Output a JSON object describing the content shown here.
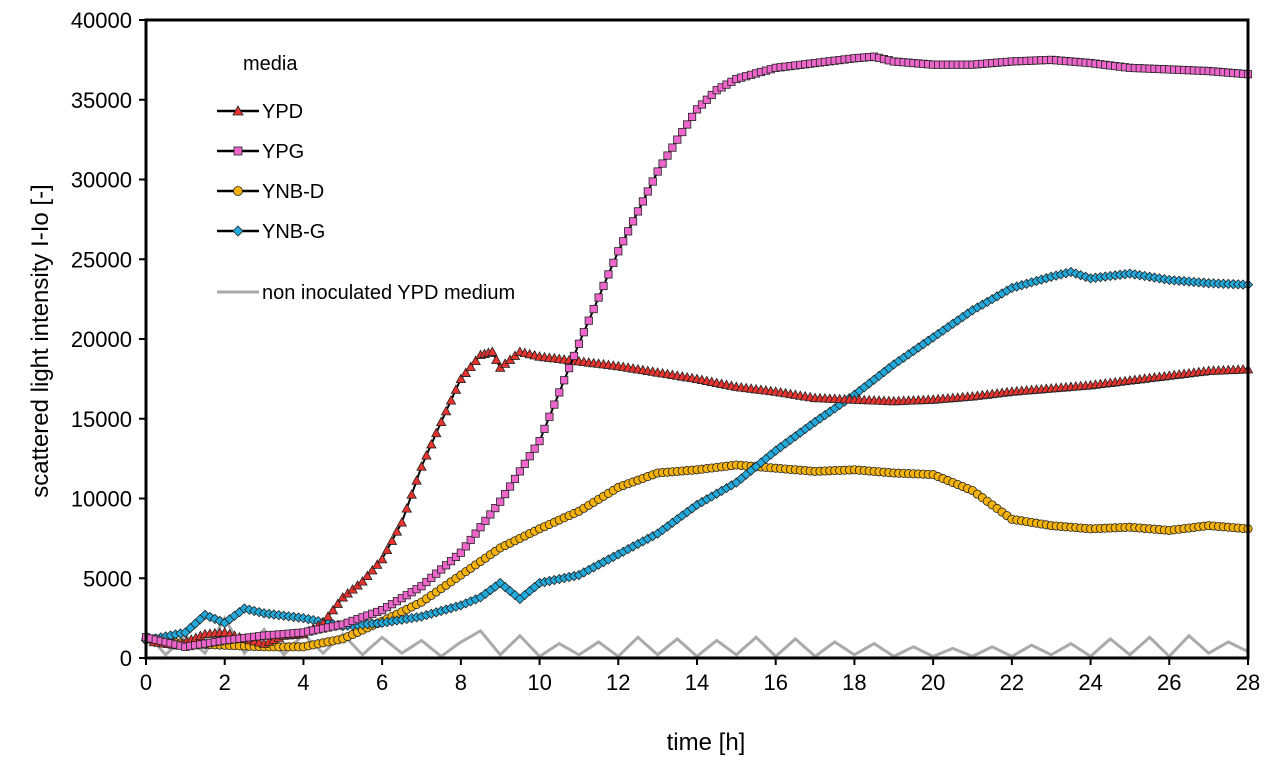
{
  "chart_data": {
    "type": "line",
    "title": "",
    "xlabel": "time   [h]",
    "ylabel": "scattered light intensity   I-Io   [-]",
    "xlim": [
      0,
      28
    ],
    "ylim": [
      0,
      40000
    ],
    "x_ticks": [
      "0",
      "2",
      "4",
      "6",
      "8",
      "10",
      "12",
      "14",
      "16",
      "18",
      "20",
      "22",
      "24",
      "26",
      "28"
    ],
    "y_ticks": [
      "0",
      "5000",
      "10000",
      "15000",
      "20000",
      "25000",
      "30000",
      "35000",
      "40000"
    ],
    "grid": false,
    "legend": {
      "title": "media",
      "position": "top-left",
      "entries": [
        "YPD",
        "YPG",
        "YNB-D",
        "YNB-G",
        "non inoculated YPD medium"
      ]
    },
    "series": [
      {
        "name": "YPD",
        "marker": "triangle",
        "marker_color": "#e8322d",
        "line_color": "#000000",
        "x": [
          0.2,
          0.8,
          1.5,
          2,
          2.5,
          3,
          3.5,
          4,
          4.5,
          5,
          5.5,
          6,
          6.5,
          7,
          7.5,
          8,
          8.5,
          8.8,
          9,
          9.5,
          10,
          11,
          12,
          13,
          14,
          15,
          16,
          17,
          18,
          19,
          20,
          21,
          22,
          23,
          24,
          25,
          26,
          27,
          28
        ],
        "y": [
          1000,
          800,
          1500,
          1600,
          1200,
          900,
          1400,
          1500,
          2200,
          3800,
          4800,
          6200,
          8500,
          12000,
          14800,
          17500,
          19000,
          19200,
          18200,
          19200,
          18900,
          18600,
          18300,
          17900,
          17500,
          17000,
          16700,
          16300,
          16200,
          16100,
          16200,
          16400,
          16700,
          16900,
          17100,
          17400,
          17700,
          18000,
          18100
        ]
      },
      {
        "name": "YPG",
        "marker": "square",
        "marker_color": "#ee66cc",
        "line_color": "#000000",
        "x": [
          0,
          1,
          2,
          3,
          4,
          5,
          6,
          7,
          8,
          9,
          10,
          11,
          12,
          13,
          13.5,
          14,
          14.5,
          15,
          16,
          17,
          18,
          18.5,
          19,
          20,
          21,
          22,
          23,
          24,
          25,
          26,
          27,
          28
        ],
        "y": [
          1300,
          700,
          1100,
          1400,
          1600,
          2100,
          3000,
          4500,
          6600,
          9800,
          13600,
          19700,
          25500,
          30500,
          32500,
          34400,
          35600,
          36300,
          37000,
          37300,
          37600,
          37700,
          37400,
          37200,
          37200,
          37400,
          37500,
          37300,
          37000,
          36900,
          36800,
          36600
        ]
      },
      {
        "name": "YNB-D",
        "marker": "circle",
        "marker_color": "#f5b20a",
        "line_color": "#000000",
        "x": [
          0,
          1,
          2,
          3,
          4,
          5,
          6,
          7,
          8,
          9,
          10,
          11,
          12,
          13,
          14,
          15,
          16,
          17,
          18,
          19,
          20,
          21,
          21.5,
          22,
          23,
          24,
          25,
          26,
          27,
          28
        ],
        "y": [
          1200,
          900,
          800,
          700,
          700,
          1200,
          2300,
          3500,
          5200,
          6900,
          8100,
          9200,
          10700,
          11600,
          11800,
          12100,
          11900,
          11700,
          11800,
          11600,
          11500,
          10500,
          9600,
          8700,
          8300,
          8100,
          8200,
          8000,
          8300,
          8100
        ]
      },
      {
        "name": "YNB-G",
        "marker": "diamond",
        "marker_color": "#22aadd",
        "line_color": "#000000",
        "x": [
          0,
          1,
          1.5,
          2,
          2.5,
          3,
          4,
          5,
          6,
          7,
          8,
          8.5,
          9,
          9.5,
          10,
          11,
          12,
          13,
          14,
          15,
          16,
          17,
          18,
          19,
          20,
          21,
          22,
          23,
          23.5,
          24,
          25,
          26,
          27,
          28
        ],
        "y": [
          1100,
          1600,
          2700,
          2200,
          3100,
          2800,
          2500,
          2000,
          2200,
          2600,
          3300,
          3800,
          4700,
          3700,
          4700,
          5200,
          6500,
          7800,
          9600,
          11000,
          13000,
          14800,
          16500,
          18400,
          20100,
          21800,
          23200,
          23900,
          24200,
          23800,
          24100,
          23700,
          23500,
          23400
        ]
      },
      {
        "name": "non inoculated YPD medium",
        "marker": "none",
        "line_color": "#aaaaaa",
        "x": [
          0,
          0.5,
          1,
          1.5,
          2,
          2.5,
          3,
          3.5,
          4,
          4.5,
          5,
          5.5,
          6,
          6.5,
          7,
          7.5,
          8,
          8.5,
          9,
          9.5,
          10,
          10.5,
          11,
          11.5,
          12,
          12.5,
          13,
          13.5,
          14,
          14.5,
          15,
          15.5,
          16,
          16.5,
          17,
          17.5,
          18,
          18.5,
          19,
          19.5,
          20,
          20.5,
          21,
          21.5,
          22,
          22.5,
          23,
          23.5,
          24,
          24.5,
          25,
          25.5,
          26,
          26.5,
          27,
          27.5,
          28
        ],
        "y": [
          1600,
          200,
          1400,
          300,
          2500,
          300,
          1800,
          200,
          1500,
          300,
          1500,
          200,
          1300,
          300,
          1100,
          100,
          1000,
          1700,
          200,
          1400,
          100,
          900,
          200,
          1000,
          100,
          1300,
          200,
          1200,
          100,
          1100,
          200,
          1300,
          100,
          1200,
          100,
          1000,
          200,
          900,
          100,
          700,
          100,
          600,
          100,
          700,
          100,
          800,
          200,
          900,
          100,
          1200,
          200,
          1300,
          100,
          1400,
          300,
          1000,
          400
        ]
      }
    ]
  }
}
